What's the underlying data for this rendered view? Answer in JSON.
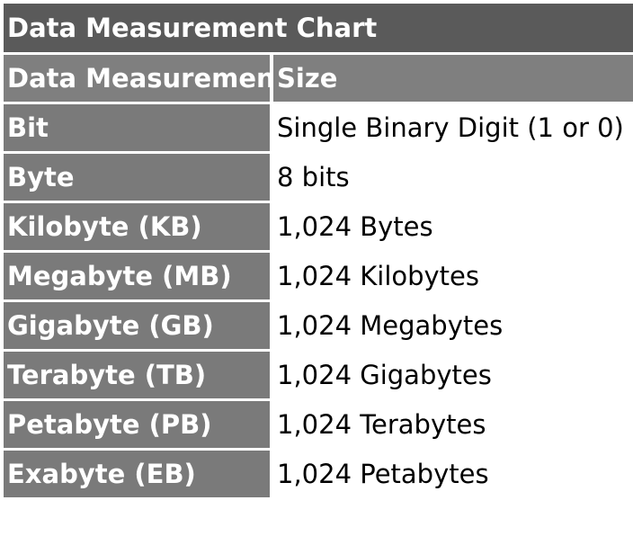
{
  "title": "Data Measurement Chart",
  "table": {
    "headers": [
      "Data Measurement",
      "Size"
    ],
    "rows": [
      {
        "name": "Bit",
        "size": "Single Binary Digit (1 or 0)"
      },
      {
        "name": "Byte",
        "size": "8 bits"
      },
      {
        "name": "Kilobyte (KB)",
        "size": "1,024 Bytes"
      },
      {
        "name": "Megabyte (MB)",
        "size": "1,024 Kilobytes"
      },
      {
        "name": "Gigabyte (GB)",
        "size": "1,024 Megabytes"
      },
      {
        "name": "Terabyte (TB)",
        "size": "1,024 Gigabytes"
      },
      {
        "name": "Petabyte (PB)",
        "size": "1,024 Terabytes"
      },
      {
        "name": "Exabyte (EB)",
        "size": "1,024 Petabytes"
      }
    ]
  },
  "colors": {
    "title_background": "#5a5a5a",
    "header_background": "#7f7f7f",
    "label_cell_background": "#7a7a7a",
    "label_text": "#ffffff",
    "value_text": "#000000"
  }
}
